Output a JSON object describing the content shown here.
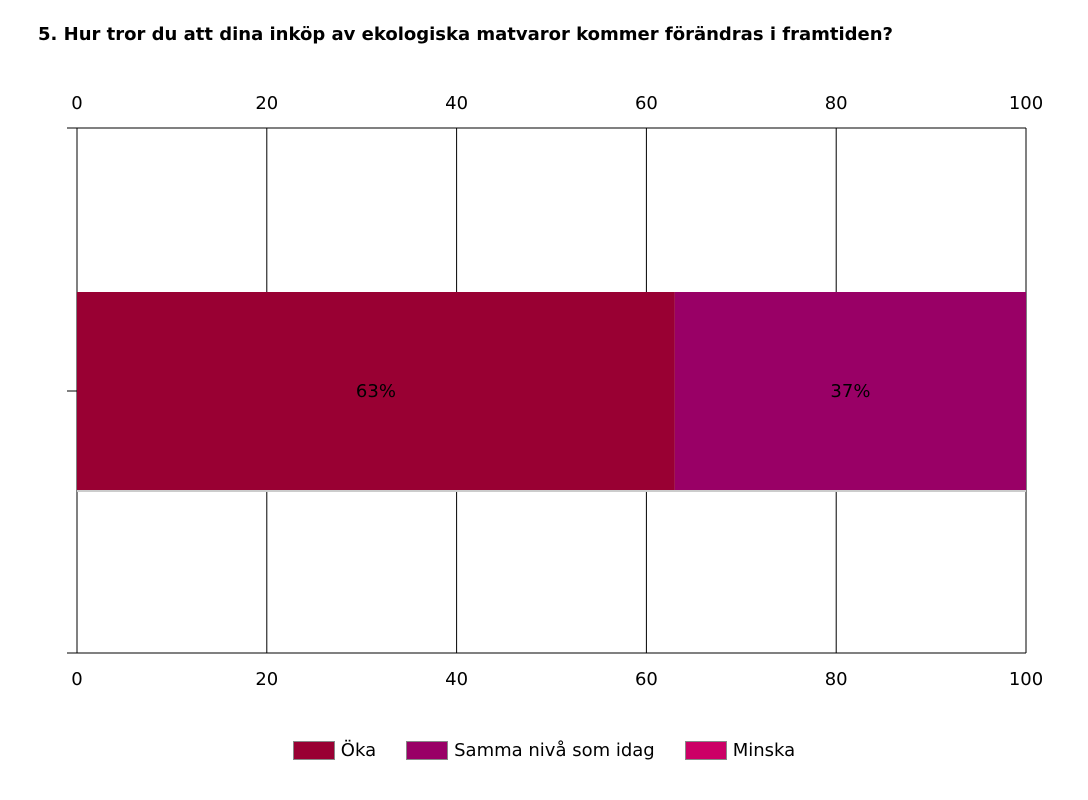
{
  "chart_data": {
    "type": "bar",
    "orientation": "horizontal",
    "stacked": true,
    "title": "5. Hur tror du att dina inköp av ekologiska matvaror kommer förändras i framtiden?",
    "xlabel": "",
    "ylabel": "",
    "xlim": [
      0,
      100
    ],
    "ticks": [
      0,
      20,
      40,
      60,
      80,
      100
    ],
    "tick_labels": [
      "0",
      "20",
      "40",
      "60",
      "80",
      "100"
    ],
    "grid": true,
    "legend_position": "bottom",
    "series": [
      {
        "name": "Öka",
        "value": 63,
        "label": "63%",
        "color": "#990033"
      },
      {
        "name": "Samma nivå som idag",
        "value": 37,
        "label": "37%",
        "color": "#990066"
      },
      {
        "name": "Minska",
        "value": 0,
        "label": "",
        "color": "#cc0066"
      }
    ]
  }
}
